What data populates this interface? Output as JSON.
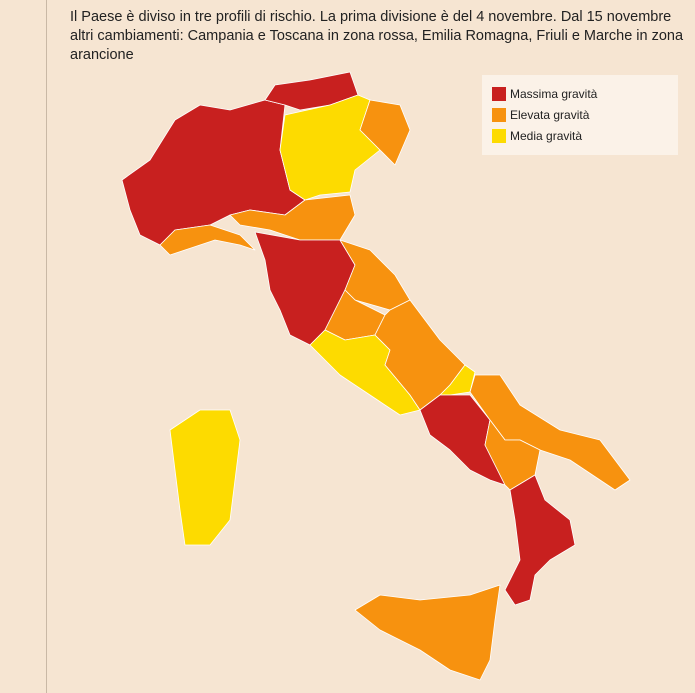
{
  "description": "Il Paese è diviso in tre profili di rischio. La prima divisione è del 4 novembre. Dal 15 novembre altri cambiamenti: Campania e Toscana in zona rossa, Emilia Romagna, Friuli e Marche in zona arancione",
  "legend": [
    {
      "label": "Massima gravità",
      "color": "#c8201f"
    },
    {
      "label": "Elevata gravità",
      "color": "#f7920f"
    },
    {
      "label": "Media gravità",
      "color": "#fddb00"
    }
  ]
}
